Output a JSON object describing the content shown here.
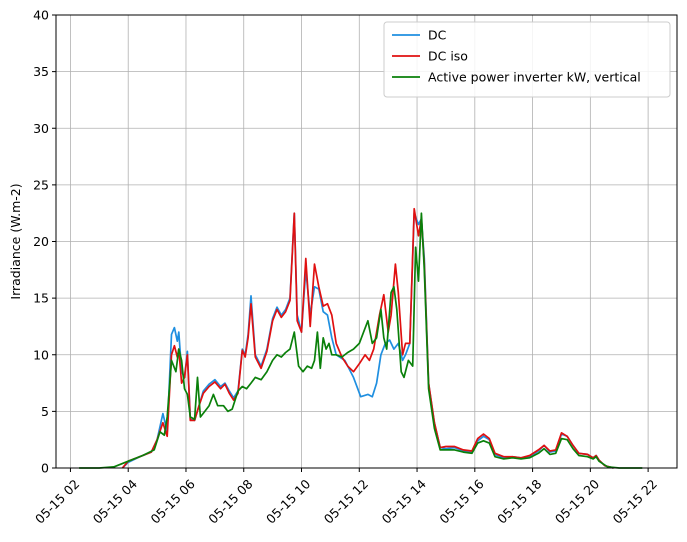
{
  "chart_data": {
    "type": "line",
    "ylabel": "Irradiance (W.m-2)",
    "xlabel": "",
    "title": "",
    "ylim": [
      0,
      40
    ],
    "xlim": [
      1.5,
      23
    ],
    "yticks": [
      0,
      5,
      10,
      15,
      20,
      25,
      30,
      35,
      40
    ],
    "xticks": [
      {
        "value": 2,
        "label": "05-15 02"
      },
      {
        "value": 4,
        "label": "05-15 04"
      },
      {
        "value": 6,
        "label": "05-15 06"
      },
      {
        "value": 8,
        "label": "05-15 08"
      },
      {
        "value": 10,
        "label": "05-15 10"
      },
      {
        "value": 12,
        "label": "05-15 12"
      },
      {
        "value": 14,
        "label": "05-15 14"
      },
      {
        "value": 16,
        "label": "05-15 16"
      },
      {
        "value": 18,
        "label": "05-15 18"
      },
      {
        "value": 20,
        "label": "05-15 20"
      },
      {
        "value": 22,
        "label": "05-15 22"
      }
    ],
    "grid": true,
    "legend_position": "top-right",
    "series": [
      {
        "name": "DC",
        "color": "#1f8fe0",
        "points": [
          [
            3.8,
            0
          ],
          [
            4.0,
            0.5
          ],
          [
            4.4,
            1.0
          ],
          [
            4.8,
            1.4
          ],
          [
            5.0,
            2.5
          ],
          [
            5.2,
            4.8
          ],
          [
            5.35,
            3.2
          ],
          [
            5.5,
            11.8
          ],
          [
            5.6,
            12.4
          ],
          [
            5.7,
            11.2
          ],
          [
            5.75,
            12.0
          ],
          [
            5.85,
            8.5
          ],
          [
            5.95,
            8.0
          ],
          [
            6.05,
            10.3
          ],
          [
            6.15,
            4.3
          ],
          [
            6.3,
            4.2
          ],
          [
            6.45,
            5.5
          ],
          [
            6.6,
            6.8
          ],
          [
            6.8,
            7.4
          ],
          [
            7.0,
            7.8
          ],
          [
            7.2,
            7.2
          ],
          [
            7.35,
            7.5
          ],
          [
            7.5,
            6.8
          ],
          [
            7.65,
            6.2
          ],
          [
            7.8,
            6.8
          ],
          [
            7.95,
            10.5
          ],
          [
            8.05,
            10.0
          ],
          [
            8.15,
            11.8
          ],
          [
            8.25,
            15.2
          ],
          [
            8.4,
            10.0
          ],
          [
            8.6,
            9.0
          ],
          [
            8.8,
            10.5
          ],
          [
            9.0,
            13.2
          ],
          [
            9.15,
            14.2
          ],
          [
            9.3,
            13.5
          ],
          [
            9.45,
            14.0
          ],
          [
            9.6,
            15.0
          ],
          [
            9.75,
            22.5
          ],
          [
            9.85,
            13.5
          ],
          [
            10.0,
            12.0
          ],
          [
            10.15,
            17.5
          ],
          [
            10.3,
            13.5
          ],
          [
            10.45,
            16.0
          ],
          [
            10.6,
            15.8
          ],
          [
            10.75,
            13.8
          ],
          [
            10.9,
            13.5
          ],
          [
            11.05,
            11.5
          ],
          [
            11.2,
            10.0
          ],
          [
            11.5,
            9.5
          ],
          [
            11.8,
            8.0
          ],
          [
            12.05,
            6.3
          ],
          [
            12.3,
            6.5
          ],
          [
            12.45,
            6.3
          ],
          [
            12.6,
            7.5
          ],
          [
            12.75,
            10.0
          ],
          [
            12.9,
            11.0
          ],
          [
            13.05,
            11.3
          ],
          [
            13.2,
            10.5
          ],
          [
            13.35,
            11.0
          ],
          [
            13.5,
            9.5
          ],
          [
            13.6,
            10.0
          ],
          [
            13.75,
            11.0
          ],
          [
            13.9,
            22.5
          ],
          [
            14.05,
            21.5
          ],
          [
            14.15,
            22.0
          ],
          [
            14.25,
            18.5
          ],
          [
            14.4,
            7.5
          ],
          [
            14.6,
            4.0
          ],
          [
            14.8,
            1.8
          ],
          [
            15.0,
            1.7
          ],
          [
            15.3,
            1.8
          ],
          [
            15.6,
            1.5
          ],
          [
            15.9,
            1.4
          ],
          [
            16.1,
            2.4
          ],
          [
            16.3,
            2.8
          ],
          [
            16.5,
            2.5
          ],
          [
            16.7,
            1.2
          ],
          [
            17.0,
            0.9
          ],
          [
            17.3,
            1.0
          ],
          [
            17.6,
            0.9
          ],
          [
            17.9,
            1.0
          ],
          [
            18.2,
            1.5
          ],
          [
            18.4,
            2.0
          ],
          [
            18.6,
            1.4
          ],
          [
            18.8,
            1.5
          ],
          [
            19.0,
            3.0
          ],
          [
            19.2,
            2.8
          ],
          [
            19.4,
            2.0
          ],
          [
            19.6,
            1.3
          ],
          [
            19.9,
            1.2
          ],
          [
            20.1,
            0.9
          ],
          [
            20.2,
            1.1
          ],
          [
            20.3,
            0.7
          ],
          [
            20.5,
            0.2
          ],
          [
            20.8,
            0
          ]
        ]
      },
      {
        "name": "DC iso",
        "color": "#e01010",
        "points": [
          [
            3.8,
            0
          ],
          [
            4.0,
            0.6
          ],
          [
            4.4,
            1.0
          ],
          [
            4.8,
            1.4
          ],
          [
            5.0,
            2.5
          ],
          [
            5.2,
            4.0
          ],
          [
            5.35,
            2.8
          ],
          [
            5.5,
            10.0
          ],
          [
            5.6,
            10.8
          ],
          [
            5.7,
            9.8
          ],
          [
            5.75,
            10.5
          ],
          [
            5.85,
            7.5
          ],
          [
            5.95,
            8.0
          ],
          [
            6.05,
            10.0
          ],
          [
            6.15,
            4.2
          ],
          [
            6.3,
            4.2
          ],
          [
            6.45,
            5.5
          ],
          [
            6.6,
            6.6
          ],
          [
            6.8,
            7.2
          ],
          [
            7.0,
            7.6
          ],
          [
            7.2,
            7.0
          ],
          [
            7.35,
            7.4
          ],
          [
            7.5,
            6.6
          ],
          [
            7.65,
            6.0
          ],
          [
            7.8,
            6.6
          ],
          [
            7.95,
            10.4
          ],
          [
            8.05,
            9.8
          ],
          [
            8.15,
            11.5
          ],
          [
            8.25,
            14.5
          ],
          [
            8.4,
            9.8
          ],
          [
            8.6,
            8.8
          ],
          [
            8.8,
            10.3
          ],
          [
            9.0,
            13.0
          ],
          [
            9.15,
            14.0
          ],
          [
            9.3,
            13.3
          ],
          [
            9.45,
            13.8
          ],
          [
            9.6,
            14.8
          ],
          [
            9.75,
            22.5
          ],
          [
            9.85,
            13.0
          ],
          [
            10.0,
            12.0
          ],
          [
            10.15,
            18.5
          ],
          [
            10.3,
            12.5
          ],
          [
            10.45,
            18.0
          ],
          [
            10.6,
            16.0
          ],
          [
            10.75,
            14.3
          ],
          [
            10.9,
            14.5
          ],
          [
            11.05,
            13.5
          ],
          [
            11.2,
            11.0
          ],
          [
            11.4,
            9.8
          ],
          [
            11.6,
            9.0
          ],
          [
            11.8,
            8.5
          ],
          [
            12.0,
            9.2
          ],
          [
            12.2,
            10.0
          ],
          [
            12.35,
            9.5
          ],
          [
            12.5,
            10.5
          ],
          [
            12.7,
            13.5
          ],
          [
            12.85,
            15.3
          ],
          [
            13.0,
            12.0
          ],
          [
            13.1,
            13.5
          ],
          [
            13.25,
            18.0
          ],
          [
            13.35,
            15.5
          ],
          [
            13.5,
            10.0
          ],
          [
            13.6,
            11.0
          ],
          [
            13.75,
            11.0
          ],
          [
            13.9,
            22.9
          ],
          [
            14.05,
            20.5
          ],
          [
            14.15,
            22.0
          ],
          [
            14.25,
            18.0
          ],
          [
            14.4,
            7.5
          ],
          [
            14.6,
            4.0
          ],
          [
            14.8,
            1.8
          ],
          [
            15.0,
            1.9
          ],
          [
            15.3,
            1.9
          ],
          [
            15.6,
            1.6
          ],
          [
            15.9,
            1.5
          ],
          [
            16.1,
            2.6
          ],
          [
            16.3,
            3.0
          ],
          [
            16.5,
            2.6
          ],
          [
            16.7,
            1.3
          ],
          [
            17.0,
            1.0
          ],
          [
            17.3,
            1.0
          ],
          [
            17.6,
            0.9
          ],
          [
            17.9,
            1.1
          ],
          [
            18.2,
            1.6
          ],
          [
            18.4,
            2.0
          ],
          [
            18.6,
            1.5
          ],
          [
            18.8,
            1.6
          ],
          [
            19.0,
            3.1
          ],
          [
            19.2,
            2.8
          ],
          [
            19.4,
            2.0
          ],
          [
            19.6,
            1.3
          ],
          [
            19.9,
            1.2
          ],
          [
            20.1,
            0.9
          ],
          [
            20.2,
            1.1
          ],
          [
            20.3,
            0.7
          ],
          [
            20.5,
            0.2
          ],
          [
            20.8,
            0
          ]
        ]
      },
      {
        "name": "Active power inverter kW, vertical",
        "color": "#0a800a",
        "points": [
          [
            2.3,
            0
          ],
          [
            3.0,
            0
          ],
          [
            3.5,
            0.1
          ],
          [
            4.0,
            0.6
          ],
          [
            4.5,
            1.1
          ],
          [
            4.9,
            1.6
          ],
          [
            5.1,
            3.2
          ],
          [
            5.25,
            2.9
          ],
          [
            5.35,
            4.5
          ],
          [
            5.5,
            9.5
          ],
          [
            5.65,
            8.5
          ],
          [
            5.75,
            10.5
          ],
          [
            5.85,
            9.5
          ],
          [
            5.95,
            7.0
          ],
          [
            6.05,
            6.5
          ],
          [
            6.15,
            4.5
          ],
          [
            6.3,
            4.3
          ],
          [
            6.4,
            8.0
          ],
          [
            6.5,
            4.5
          ],
          [
            6.65,
            5.0
          ],
          [
            6.8,
            5.5
          ],
          [
            6.95,
            6.5
          ],
          [
            7.1,
            5.5
          ],
          [
            7.3,
            5.5
          ],
          [
            7.45,
            5.0
          ],
          [
            7.6,
            5.2
          ],
          [
            7.8,
            6.8
          ],
          [
            7.95,
            7.2
          ],
          [
            8.1,
            7.0
          ],
          [
            8.25,
            7.5
          ],
          [
            8.4,
            8.0
          ],
          [
            8.6,
            7.8
          ],
          [
            8.8,
            8.5
          ],
          [
            9.0,
            9.5
          ],
          [
            9.15,
            10.0
          ],
          [
            9.3,
            9.8
          ],
          [
            9.45,
            10.2
          ],
          [
            9.6,
            10.5
          ],
          [
            9.75,
            12.0
          ],
          [
            9.9,
            9.0
          ],
          [
            10.05,
            8.5
          ],
          [
            10.2,
            9.0
          ],
          [
            10.35,
            8.8
          ],
          [
            10.45,
            9.5
          ],
          [
            10.55,
            12.0
          ],
          [
            10.65,
            8.8
          ],
          [
            10.75,
            11.5
          ],
          [
            10.85,
            10.5
          ],
          [
            10.95,
            11.0
          ],
          [
            11.05,
            10.0
          ],
          [
            11.2,
            10.0
          ],
          [
            11.4,
            9.8
          ],
          [
            11.6,
            10.2
          ],
          [
            11.8,
            10.5
          ],
          [
            12.0,
            11.0
          ],
          [
            12.15,
            12.0
          ],
          [
            12.3,
            13.0
          ],
          [
            12.45,
            11.0
          ],
          [
            12.6,
            11.5
          ],
          [
            12.75,
            14.0
          ],
          [
            12.85,
            11.5
          ],
          [
            12.95,
            10.5
          ],
          [
            13.1,
            15.5
          ],
          [
            13.2,
            16.0
          ],
          [
            13.3,
            14.0
          ],
          [
            13.45,
            8.5
          ],
          [
            13.55,
            8.0
          ],
          [
            13.7,
            9.5
          ],
          [
            13.85,
            9.0
          ],
          [
            13.95,
            19.5
          ],
          [
            14.05,
            16.5
          ],
          [
            14.15,
            22.5
          ],
          [
            14.25,
            17.5
          ],
          [
            14.4,
            7.0
          ],
          [
            14.6,
            3.5
          ],
          [
            14.8,
            1.6
          ],
          [
            15.0,
            1.6
          ],
          [
            15.3,
            1.6
          ],
          [
            15.6,
            1.4
          ],
          [
            15.9,
            1.3
          ],
          [
            16.1,
            2.2
          ],
          [
            16.3,
            2.4
          ],
          [
            16.5,
            2.2
          ],
          [
            16.7,
            1.0
          ],
          [
            17.0,
            0.8
          ],
          [
            17.3,
            0.9
          ],
          [
            17.6,
            0.8
          ],
          [
            17.9,
            0.9
          ],
          [
            18.2,
            1.3
          ],
          [
            18.4,
            1.7
          ],
          [
            18.6,
            1.2
          ],
          [
            18.8,
            1.3
          ],
          [
            19.0,
            2.6
          ],
          [
            19.2,
            2.5
          ],
          [
            19.4,
            1.7
          ],
          [
            19.6,
            1.1
          ],
          [
            19.9,
            1.0
          ],
          [
            20.1,
            0.8
          ],
          [
            20.2,
            1.0
          ],
          [
            20.3,
            0.6
          ],
          [
            20.6,
            0.1
          ],
          [
            21.0,
            0
          ],
          [
            21.8,
            0
          ]
        ]
      }
    ]
  }
}
